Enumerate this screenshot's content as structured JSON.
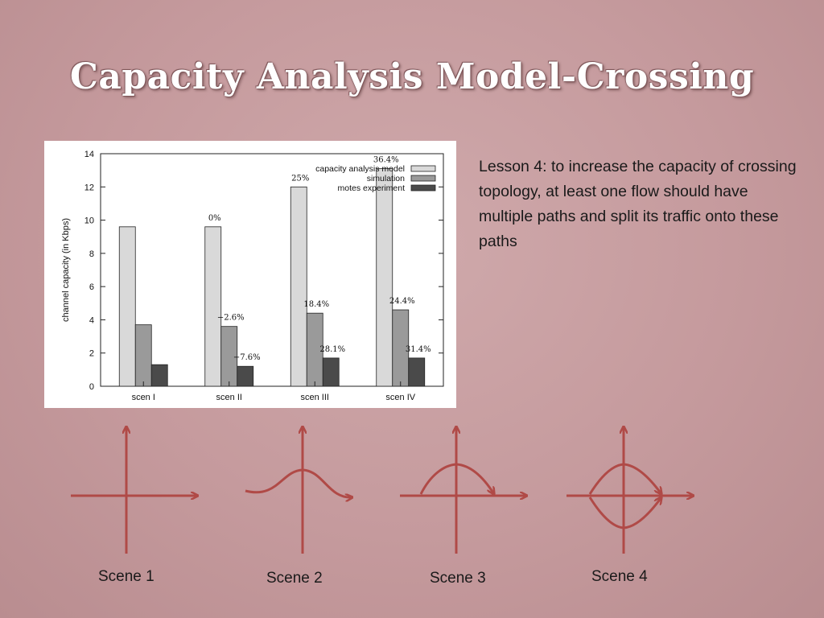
{
  "slide": {
    "title": "Capacity Analysis Model-Crossing",
    "lesson_text": "Lesson 4: to increase the capacity of crossing topology, at least one flow should have multiple paths and split its traffic onto these paths",
    "scenes": [
      {
        "label": "Scene 1",
        "icon": "axes-icon"
      },
      {
        "label": "Scene 2",
        "icon": "single-curve-path-icon"
      },
      {
        "label": "Scene 3",
        "icon": "arc-path-icon"
      },
      {
        "label": "Scene 4",
        "icon": "split-path-icon"
      }
    ],
    "curve_color": "#b04a47"
  },
  "chart_data": {
    "type": "bar",
    "categories": [
      "scen I",
      "scen II",
      "scen III",
      "scen IV"
    ],
    "series": [
      {
        "name": "capacity analysis model",
        "values": [
          9.6,
          9.6,
          12.0,
          13.1
        ],
        "color": "#d9d9d9"
      },
      {
        "name": "simulation",
        "values": [
          3.7,
          3.6,
          4.4,
          4.6
        ],
        "color": "#9a9a9a"
      },
      {
        "name": "motes experiment",
        "values": [
          1.3,
          1.2,
          1.7,
          1.7
        ],
        "color": "#4a4a4a"
      }
    ],
    "annotations": [
      {
        "category": 1,
        "series": 0,
        "text": "0%"
      },
      {
        "category": 2,
        "series": 0,
        "text": "25%"
      },
      {
        "category": 3,
        "series": 0,
        "text": "36.4%"
      },
      {
        "category": 1,
        "series": 1,
        "text": "−2.6%"
      },
      {
        "category": 2,
        "series": 1,
        "text": "18.4%"
      },
      {
        "category": 3,
        "series": 1,
        "text": "24.4%"
      },
      {
        "category": 1,
        "series": 2,
        "text": "−7.6%"
      },
      {
        "category": 2,
        "series": 2,
        "text": "28.1%"
      },
      {
        "category": 3,
        "series": 2,
        "text": "31.4%"
      }
    ],
    "ylabel": "channel capacity (in Kbps)",
    "xlabel": "",
    "ylim": [
      0,
      14
    ],
    "yticks": [
      0,
      2,
      4,
      6,
      8,
      10,
      12,
      14
    ],
    "legend_position": "top-right",
    "grid": false
  }
}
